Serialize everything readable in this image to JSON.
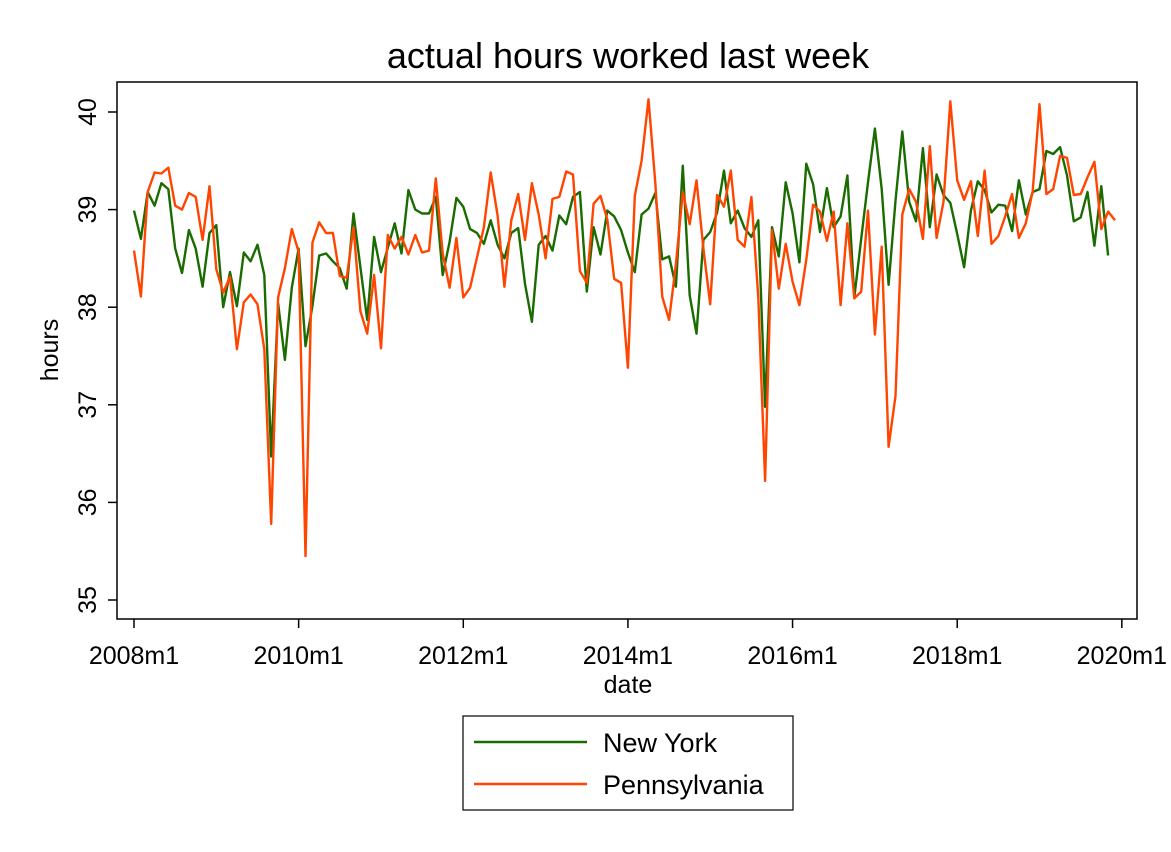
{
  "chart_data": {
    "type": "line",
    "title": "actual hours worked last week",
    "xlabel": "date",
    "ylabel": "hours",
    "x_start": "2008m1",
    "x_end": "2019m12",
    "x_ticks": [
      "2008m1",
      "2010m1",
      "2012m1",
      "2014m1",
      "2016m1",
      "2018m1",
      "2020m1"
    ],
    "y_ticks": [
      "35",
      "36",
      "37",
      "38",
      "39",
      "40"
    ],
    "ylim": [
      35,
      40
    ],
    "grid": false,
    "legend_position": "bottom",
    "series": [
      {
        "name": "New York",
        "color": "#1a6b00",
        "values": [
          38.99,
          38.7,
          39.18,
          39.04,
          39.27,
          39.21,
          38.6,
          38.35,
          38.79,
          38.6,
          38.21,
          38.76,
          38.84,
          38.0,
          38.36,
          38.01,
          38.56,
          38.47,
          38.64,
          38.33,
          36.47,
          38.04,
          37.46,
          38.2,
          38.6,
          37.6,
          38.01,
          38.53,
          38.55,
          38.47,
          38.4,
          38.19,
          38.96,
          38.41,
          37.87,
          38.72,
          38.36,
          38.61,
          38.86,
          38.55,
          39.2,
          39.0,
          38.96,
          38.96,
          39.13,
          38.33,
          38.67,
          39.12,
          39.03,
          38.8,
          38.76,
          38.65,
          38.89,
          38.64,
          38.5,
          38.76,
          38.81,
          38.24,
          37.85,
          38.64,
          38.73,
          38.58,
          38.94,
          38.85,
          39.13,
          39.18,
          38.16,
          38.82,
          38.54,
          38.99,
          38.93,
          38.79,
          38.56,
          38.36,
          38.95,
          39.01,
          39.17,
          38.49,
          38.52,
          38.21,
          39.45,
          38.12,
          37.73,
          38.69,
          38.77,
          38.97,
          39.4,
          38.86,
          38.99,
          38.81,
          38.72,
          38.89,
          36.98,
          38.82,
          38.52,
          39.28,
          38.96,
          38.46,
          39.47,
          39.26,
          38.77,
          39.22,
          38.82,
          38.93,
          39.35,
          38.1,
          38.7,
          39.28,
          39.83,
          39.21,
          38.23,
          39.09,
          39.8,
          39.08,
          38.88,
          39.63,
          38.82,
          39.36,
          39.15,
          39.07,
          38.75,
          38.41,
          38.99,
          39.29,
          39.2,
          38.97,
          39.05,
          39.04,
          38.78,
          39.3,
          38.95,
          39.18,
          39.21,
          39.6,
          39.57,
          39.64,
          39.35,
          38.88,
          38.92,
          39.18,
          38.63,
          39.24,
          38.53
        ]
      },
      {
        "name": "Pennsylvania",
        "color": "#ff4500",
        "values": [
          38.58,
          38.11,
          39.18,
          39.38,
          39.37,
          39.43,
          39.04,
          39.0,
          39.17,
          39.13,
          38.69,
          39.24,
          38.39,
          38.15,
          38.31,
          37.57,
          38.05,
          38.13,
          38.03,
          37.57,
          35.78,
          38.1,
          38.4,
          38.8,
          38.57,
          35.45,
          38.66,
          38.87,
          38.76,
          38.76,
          38.32,
          38.3,
          38.82,
          37.96,
          37.73,
          38.33,
          37.58,
          38.74,
          38.6,
          38.72,
          38.54,
          38.74,
          38.56,
          38.58,
          39.32,
          38.55,
          38.2,
          38.71,
          38.1,
          38.2,
          38.51,
          38.82,
          39.38,
          38.94,
          38.21,
          38.89,
          39.16,
          38.69,
          39.27,
          38.95,
          38.5,
          39.11,
          39.13,
          39.39,
          39.36,
          38.37,
          38.25,
          39.06,
          39.14,
          38.9,
          38.29,
          38.25,
          37.38,
          39.14,
          39.5,
          40.13,
          39.26,
          38.11,
          37.87,
          38.44,
          39.18,
          38.85,
          39.3,
          38.6,
          38.03,
          39.15,
          39.03,
          39.4,
          38.69,
          38.62,
          39.13,
          38.1,
          36.22,
          38.79,
          38.19,
          38.65,
          38.26,
          38.02,
          38.49,
          39.05,
          38.98,
          38.68,
          38.98,
          38.02,
          38.86,
          38.09,
          38.16,
          38.99,
          37.72,
          38.62,
          36.57,
          37.09,
          38.95,
          39.21,
          39.08,
          38.7,
          39.65,
          38.71,
          39.08,
          40.11,
          39.3,
          39.1,
          39.29,
          38.73,
          39.4,
          38.65,
          38.73,
          38.93,
          39.16,
          38.71,
          38.86,
          39.19,
          40.08,
          39.16,
          39.21,
          39.55,
          39.53,
          39.15,
          39.16,
          39.33,
          39.49,
          38.8,
          38.98,
          38.89
        ]
      }
    ]
  }
}
